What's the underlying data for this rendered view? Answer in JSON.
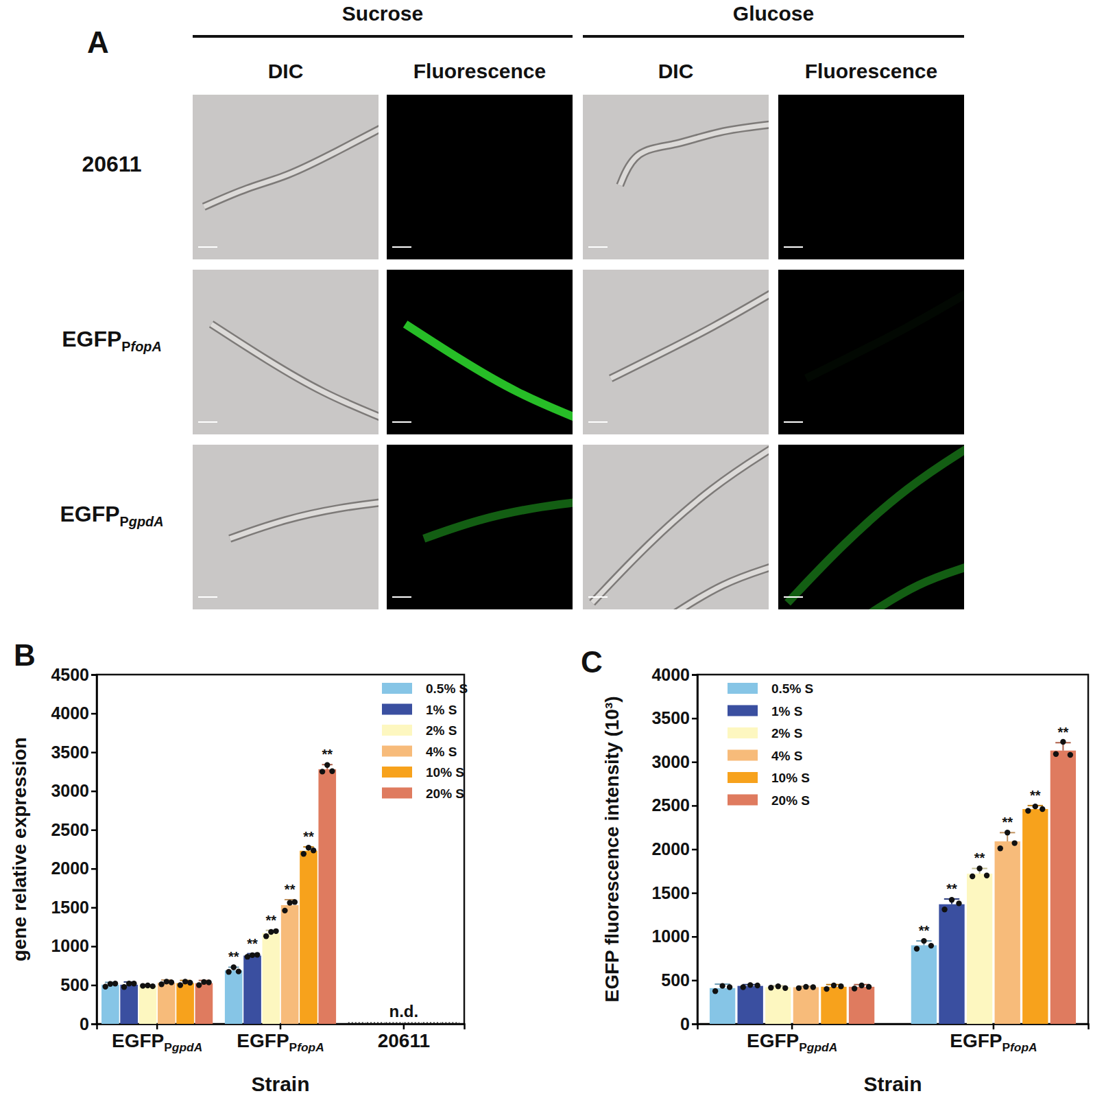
{
  "panel_a": {
    "label": "A",
    "column_groups": [
      {
        "title": "Sucrose",
        "columns": [
          "DIC",
          "Fluorescence"
        ]
      },
      {
        "title": "Glucose",
        "columns": [
          "DIC",
          "Fluorescence"
        ]
      }
    ],
    "rows": [
      "20611",
      "EGFPPfopA",
      "EGFPPgpdA"
    ]
  },
  "chart_data": [
    {
      "type": "bar",
      "label": "B",
      "x_label": "Strain",
      "y_label": "gene relative expression",
      "categories": [
        "EGFPPgpdA",
        "EGFPPfopA",
        "20611"
      ],
      "ylim": [
        0,
        4500
      ],
      "yticks": [
        0,
        500,
        1000,
        1500,
        2000,
        2500,
        3000,
        3500,
        4000,
        4500
      ],
      "legend": "top-right",
      "annotations": [
        {
          "text": "n.d.",
          "category": 2
        }
      ],
      "series": [
        {
          "name": "0.5% S",
          "color": "#86c5e6",
          "values": [
            505,
            690,
            null
          ],
          "error": [
            30,
            40,
            null
          ],
          "points": [
            [
              480,
              515,
              520
            ],
            [
              670,
              730,
              675
            ],
            null
          ],
          "significance": [
            null,
            "**",
            null
          ]
        },
        {
          "name": "1% S",
          "color": "#3a4fa0",
          "values": [
            505,
            880,
            null
          ],
          "error": [
            35,
            25,
            null
          ],
          "points": [
            [
              475,
              520,
              520
            ],
            [
              865,
              885,
              890
            ],
            null
          ],
          "significance": [
            null,
            "**",
            null
          ]
        },
        {
          "name": "2% S",
          "color": "#fdf7c0",
          "values": [
            490,
            1170,
            null
          ],
          "error": [
            15,
            35,
            null
          ],
          "points": [
            [
              490,
              495,
              485
            ],
            [
              1130,
              1185,
              1195
            ],
            null
          ],
          "significance": [
            null,
            "**",
            null
          ]
        },
        {
          "name": "4% S",
          "color": "#f7bb7a",
          "values": [
            530,
            1530,
            null
          ],
          "error": [
            35,
            70,
            null
          ],
          "points": [
            [
              510,
              545,
              535
            ],
            [
              1460,
              1560,
              1570
            ],
            null
          ],
          "significance": [
            null,
            "**",
            null
          ]
        },
        {
          "name": "10% S",
          "color": "#f7a21c",
          "values": [
            525,
            2230,
            null
          ],
          "error": [
            35,
            50,
            null
          ],
          "points": [
            [
              500,
              545,
              530
            ],
            [
              2190,
              2270,
              2235
            ],
            null
          ],
          "significance": [
            null,
            "**",
            null
          ]
        },
        {
          "name": "20% S",
          "color": "#df7b5f",
          "values": [
            525,
            3280,
            null
          ],
          "error": [
            35,
            60,
            null
          ],
          "points": [
            [
              500,
              540,
              535
            ],
            [
              3250,
              3335,
              3255
            ],
            null
          ],
          "significance": [
            null,
            "**",
            null
          ]
        }
      ]
    },
    {
      "type": "bar",
      "label": "C",
      "x_label": "Strain",
      "y_label": "EGFP fluorescence intensity (10³)",
      "categories": [
        "EGFPPgpdA",
        "EGFPPfopA"
      ],
      "ylim": [
        0,
        4000
      ],
      "yticks": [
        0,
        500,
        1000,
        1500,
        2000,
        2500,
        3000,
        3500,
        4000
      ],
      "legend": "top-left",
      "series": [
        {
          "name": "0.5% S",
          "color": "#86c5e6",
          "values": [
            410,
            900
          ],
          "error": [
            45,
            50
          ],
          "points": [
            [
              375,
              435,
              420
            ],
            [
              860,
              950,
              895
            ]
          ],
          "significance": [
            null,
            "**"
          ]
        },
        {
          "name": "1% S",
          "color": "#3a4fa0",
          "values": [
            435,
            1370
          ],
          "error": [
            15,
            60
          ],
          "points": [
            [
              420,
              445,
              440
            ],
            [
              1310,
              1420,
              1380
            ]
          ],
          "significance": [
            null,
            "**"
          ]
        },
        {
          "name": "2% S",
          "color": "#fdf7c0",
          "values": [
            420,
            1720
          ],
          "error": [
            15,
            60
          ],
          "points": [
            [
              415,
              430,
              410
            ],
            [
              1690,
              1780,
              1700
            ]
          ],
          "significance": [
            null,
            "**"
          ]
        },
        {
          "name": "4% S",
          "color": "#f7bb7a",
          "values": [
            420,
            2090
          ],
          "error": [
            10,
            100
          ],
          "points": [
            [
              410,
              425,
              420
            ],
            [
              2010,
              2190,
              2070
            ]
          ],
          "significance": [
            null,
            "**"
          ]
        },
        {
          "name": "10% S",
          "color": "#f7a21c",
          "values": [
            425,
            2460
          ],
          "error": [
            25,
            40
          ],
          "points": [
            [
              400,
              440,
              430
            ],
            [
              2440,
              2490,
              2460
            ]
          ],
          "significance": [
            null,
            "**"
          ]
        },
        {
          "name": "20% S",
          "color": "#df7b5f",
          "values": [
            425,
            3130
          ],
          "error": [
            25,
            90
          ],
          "points": [
            [
              405,
              440,
              425
            ],
            [
              3090,
              3230,
              3080
            ]
          ],
          "significance": [
            null,
            "**"
          ]
        }
      ]
    }
  ]
}
